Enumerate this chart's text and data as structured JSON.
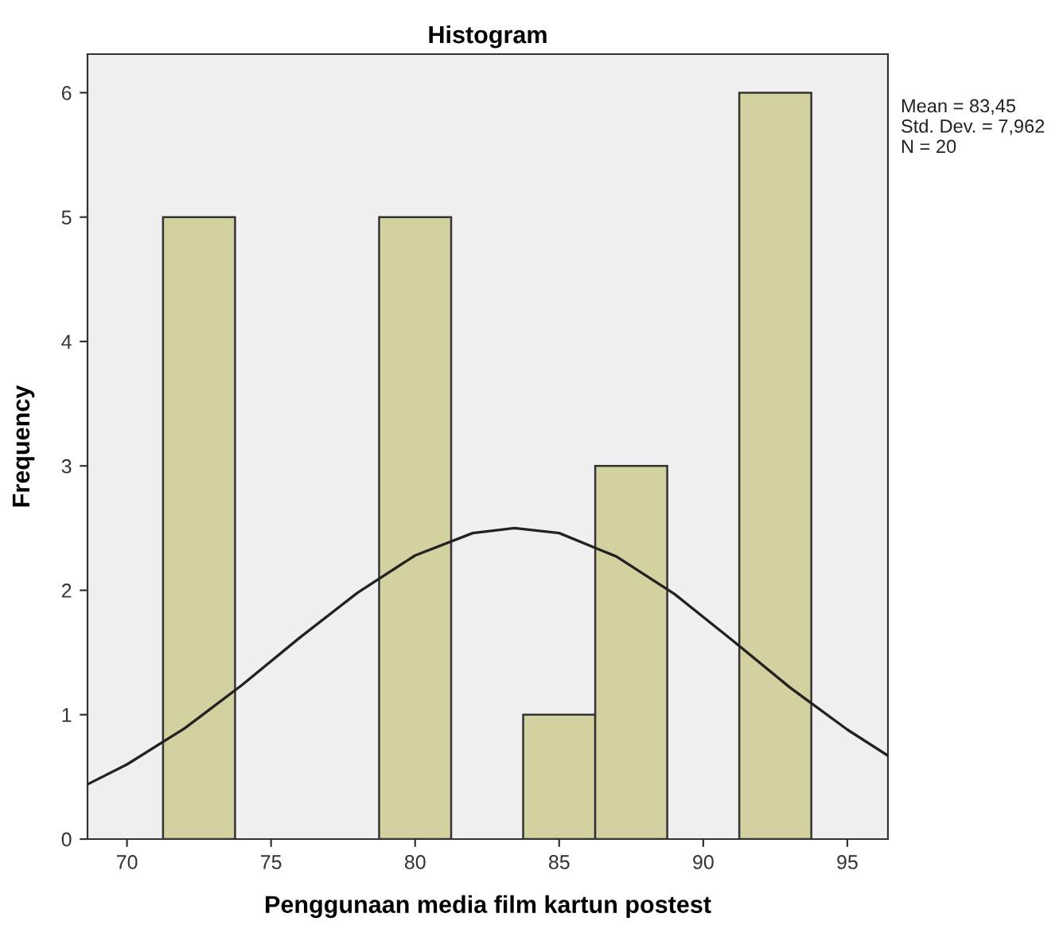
{
  "chart_data": {
    "type": "histogram",
    "title": "Histogram",
    "xlabel": "Penggunaan media film kartun postest",
    "ylabel": "Frequency",
    "bins": [
      71.25,
      73.75,
      76.25,
      78.75,
      81.25,
      83.75,
      86.25,
      88.75,
      91.25,
      93.75
    ],
    "values": [
      5,
      0,
      0,
      5,
      0,
      1,
      3,
      0,
      6
    ],
    "color": "#d4d1a1",
    "series": [
      {
        "type": "line",
        "color": "#222222",
        "x": [
          68.63,
          70,
          72,
          74,
          76,
          78,
          80,
          82,
          83.45,
          85,
          87,
          89,
          91,
          93,
          95,
          96.41
        ],
        "values": [
          0.44,
          0.6,
          0.89,
          1.24,
          1.62,
          1.98,
          2.28,
          2.46,
          2.5,
          2.46,
          2.27,
          1.97,
          1.6,
          1.22,
          0.88,
          0.67
        ]
      }
    ],
    "xlim": [
      68.63,
      96.41
    ],
    "ylim": [
      0,
      6.31
    ],
    "xticks": [
      70,
      75,
      80,
      85,
      90,
      95
    ],
    "yticks": [
      0,
      1,
      2,
      3,
      4,
      5,
      6
    ],
    "grid": false,
    "legend": false,
    "annotations": [
      "Mean = 83,45\nStd. Dev. = 7,962\nN = 20"
    ]
  }
}
